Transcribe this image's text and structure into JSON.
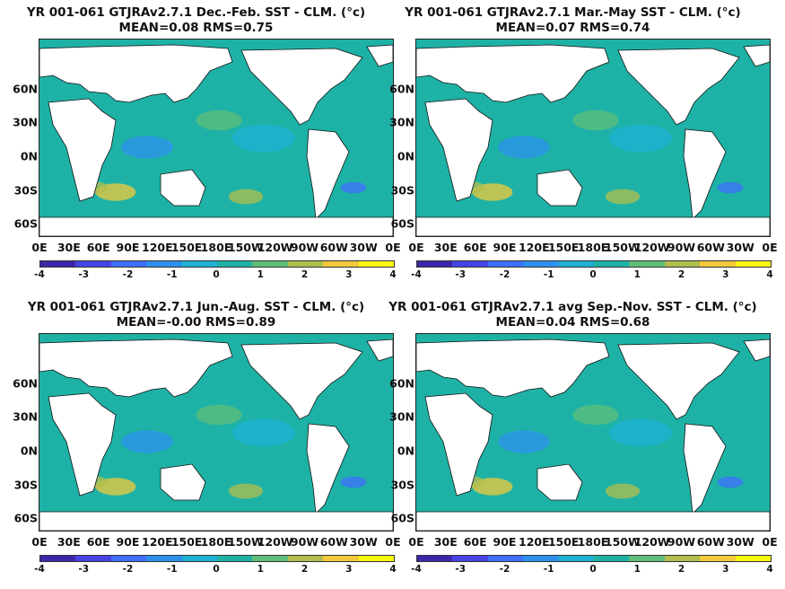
{
  "panels": [
    {
      "title": "YR 001-061 GTJRAv2.7.1  Dec.-Feb. SST - CLM. (°c)",
      "stats": "MEAN=0.08   RMS=0.75"
    },
    {
      "title": "YR 001-061 GTJRAv2.7.1 Mar.-May SST - CLM. (°c)",
      "stats": "MEAN=0.07   RMS=0.74"
    },
    {
      "title": "YR 001-061 GTJRAv2.7.1 Jun.-Aug. SST - CLM. (°c)",
      "stats": "MEAN=-0.00   RMS=0.89"
    },
    {
      "title": "YR 001-061 GTJRAv2.7.1 avg Sep.-Nov. SST - CLM. (°c)",
      "stats": "MEAN=0.04   RMS=0.68"
    }
  ],
  "lat_labels": [
    "60N",
    "30N",
    "0N",
    "30S",
    "60S"
  ],
  "lon_labels": [
    "0E",
    "30E",
    "60E",
    "90E",
    "120E",
    "150E",
    "180E",
    "150W",
    "120W",
    "90W",
    "60W",
    "30W",
    "0E"
  ],
  "colorbar": {
    "ticks": [
      "-4",
      "-3",
      "-2",
      "-1",
      "0",
      "1",
      "2",
      "3",
      "4"
    ],
    "colors": [
      "#3e26a8",
      "#4743e4",
      "#3f6ffe",
      "#2c91ed",
      "#1eb1d4",
      "#1eb2a6",
      "#5fbe78",
      "#b1bd4d",
      "#f1c93a",
      "#f9f80f"
    ]
  },
  "colors": {
    "ocean": "#1eb2a6",
    "land": "#ffffff",
    "coast": "#111111"
  }
}
